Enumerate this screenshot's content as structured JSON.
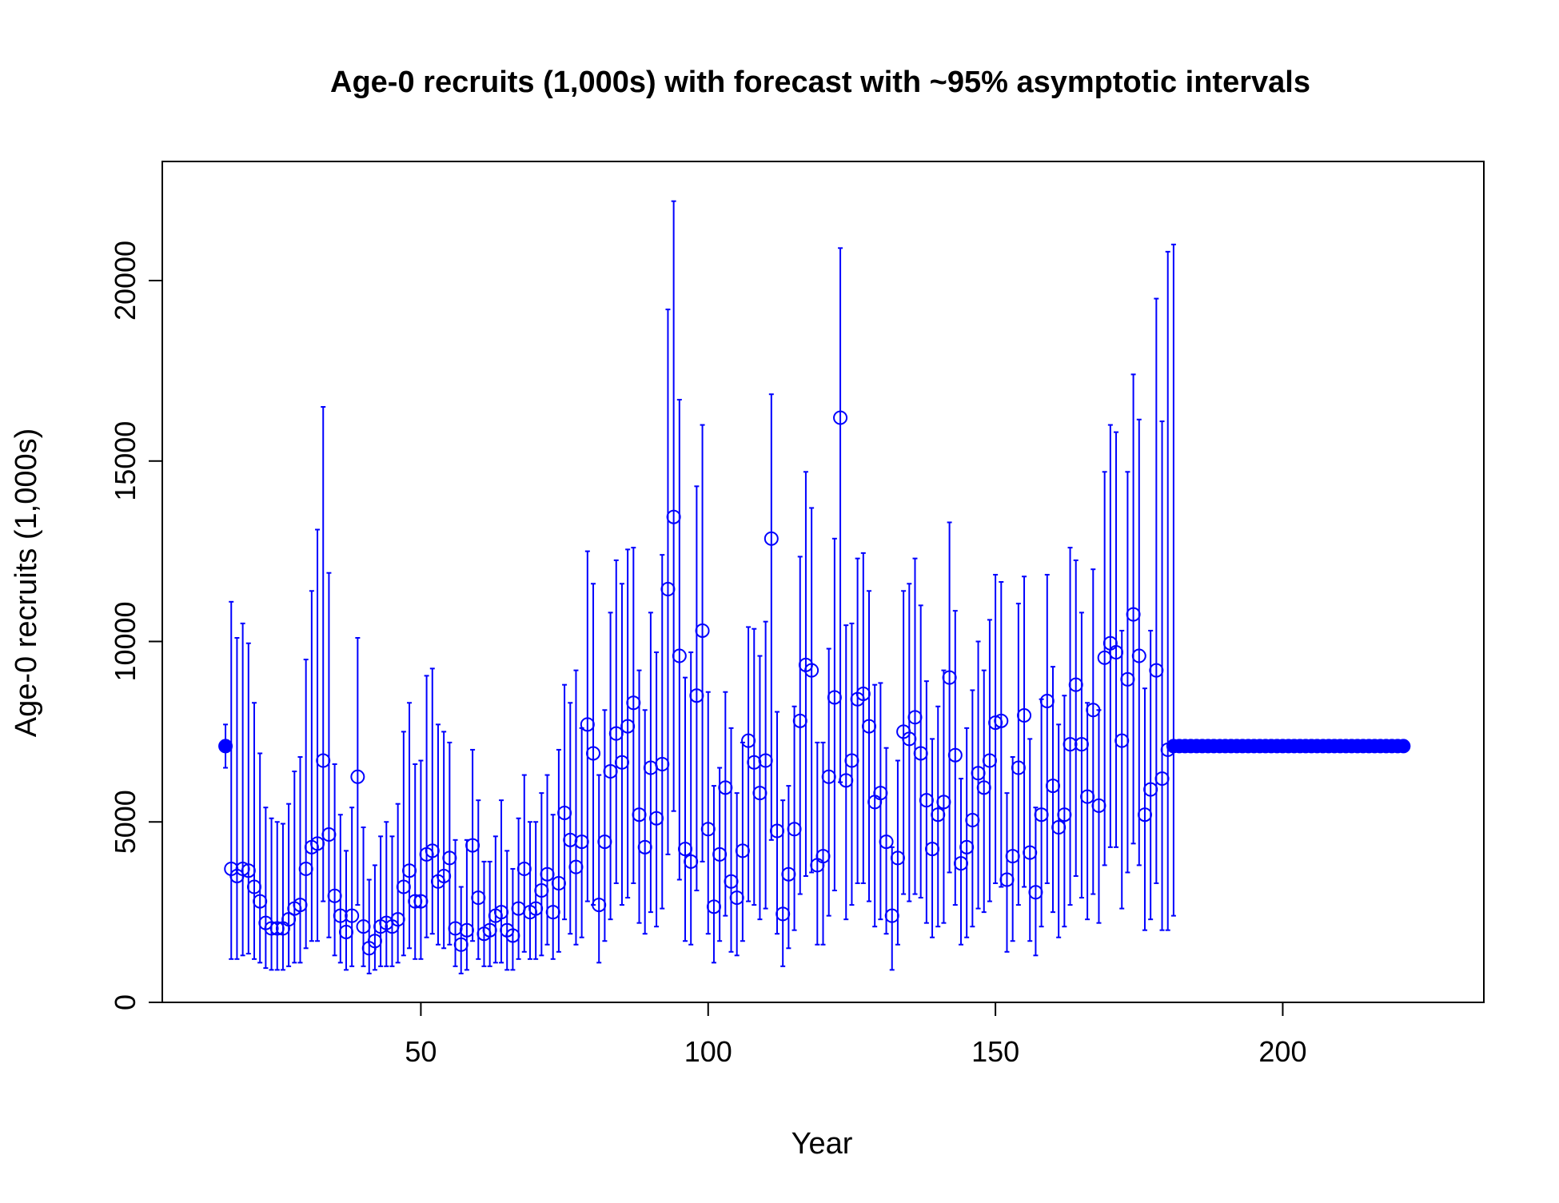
{
  "chart_data": {
    "type": "scatter",
    "title": "Age-0 recruits (1,000s) with forecast with ~95% asymptotic intervals",
    "xlabel": "Year",
    "ylabel": "Age-0 recruits (1,000s)",
    "xlim": [
      5,
      235
    ],
    "ylim": [
      0,
      23300
    ],
    "x_ticks": [
      50,
      100,
      150,
      200
    ],
    "x_tick_labels": [
      "50",
      "100",
      "150",
      "200"
    ],
    "y_ticks": [
      0,
      5000,
      10000,
      15000,
      20000
    ],
    "y_tick_labels": [
      "0",
      "5000",
      "10000",
      "15000",
      "20000"
    ],
    "grid": false,
    "colors": {
      "series": "#0000ff",
      "axes": "#000000"
    },
    "series": [
      {
        "marker": "filled-circle",
        "points": [
          {
            "x": 16,
            "y": 7100,
            "lo": 6500,
            "hi": 7700
          }
        ]
      },
      {
        "marker": "open-circle",
        "x": [
          17,
          18,
          19,
          20,
          21,
          22,
          23,
          24,
          25,
          26,
          27,
          28,
          29,
          30,
          31,
          32,
          33,
          34,
          35,
          36,
          37,
          38,
          39,
          40,
          41,
          42,
          43,
          44,
          45,
          46,
          47,
          48,
          49,
          50,
          51,
          52,
          53,
          54,
          55,
          56,
          57,
          58,
          59,
          60,
          61,
          62,
          63,
          64,
          65,
          66,
          67,
          68,
          69,
          70,
          71,
          72,
          73,
          74,
          75,
          76,
          77,
          78,
          79,
          80,
          81,
          82,
          83,
          84,
          85,
          86,
          87,
          88,
          89,
          90,
          91,
          92,
          93,
          94,
          95,
          96,
          97,
          98,
          99,
          100,
          101,
          102,
          103,
          104,
          105,
          106,
          107,
          108,
          109,
          110,
          111,
          112,
          113,
          114,
          115,
          116,
          117,
          118,
          119,
          120,
          121,
          122,
          123,
          124,
          125,
          126,
          127,
          128,
          129,
          130,
          131,
          132,
          133,
          134,
          135,
          136,
          137,
          138,
          139,
          140,
          141,
          142,
          143,
          144,
          145,
          146,
          147,
          148,
          149,
          150,
          151,
          152,
          153,
          154,
          155,
          156,
          157,
          158,
          159,
          160,
          161,
          162,
          163,
          164,
          165,
          166,
          167,
          168,
          169,
          170,
          171,
          172,
          173,
          174,
          175,
          176,
          177,
          178,
          179,
          180
        ],
        "y": [
          3700,
          3500,
          3700,
          3650,
          3200,
          2800,
          2200,
          2050,
          2050,
          2050,
          2300,
          2600,
          2700,
          3700,
          4300,
          4400,
          6700,
          4650,
          2950,
          2400,
          1950,
          2400,
          6250,
          2100,
          1500,
          1700,
          2100,
          2200,
          2100,
          2300,
          3200,
          3650,
          2800,
          2800,
          4100,
          4200,
          3350,
          3500,
          4000,
          2050,
          1600,
          2000,
          4350,
          2900,
          1900,
          2000,
          2400,
          2500,
          2000,
          1850,
          2600,
          3700,
          2500,
          2600,
          3100,
          3550,
          2500,
          3300,
          5250,
          4500,
          3750,
          4450,
          7700,
          6900,
          2700,
          4450,
          6400,
          7450,
          6650,
          7650,
          8300,
          5200,
          4300,
          6500,
          5100,
          6600,
          11450,
          13450,
          9600,
          4250,
          3900,
          8500,
          10300,
          4800,
          2650,
          4100,
          5950,
          3350,
          2900,
          4200,
          7250,
          6650,
          5800,
          6700,
          12850,
          4750,
          2450,
          3550,
          4800,
          7800,
          9350,
          9200,
          3800,
          4050,
          6250,
          8450,
          16200,
          6150,
          6700,
          8400,
          8550,
          7650,
          5550,
          5800,
          4450,
          2400,
          4000,
          7500,
          7300,
          7900,
          6900,
          5600,
          4250,
          5200,
          5550,
          9000,
          6850,
          3850,
          4300,
          5050,
          6350,
          5950,
          6700,
          7750,
          7800,
          3400,
          4050,
          6500,
          7950,
          4150,
          3050,
          5200,
          8350,
          6000,
          4850,
          5200,
          7150,
          8800,
          7150,
          5700,
          8100,
          5450,
          9550,
          9950,
          9700,
          7250,
          8950,
          10750,
          9600,
          5200,
          5900,
          9200,
          6200,
          7000
        ],
        "lo": [
          1200,
          1200,
          1300,
          1350,
          1200,
          1100,
          950,
          900,
          900,
          900,
          1000,
          1100,
          1100,
          1500,
          1700,
          1700,
          2800,
          1800,
          1300,
          1100,
          900,
          1000,
          2700,
          1000,
          800,
          900,
          1000,
          1000,
          1000,
          1100,
          1300,
          1500,
          1200,
          1200,
          1800,
          1900,
          1600,
          1500,
          1600,
          1000,
          800,
          900,
          1700,
          1200,
          1000,
          1000,
          1100,
          1100,
          900,
          900,
          1200,
          1400,
          1200,
          1200,
          1300,
          1600,
          1200,
          1400,
          2300,
          1900,
          1600,
          1800,
          2800,
          2700,
          1100,
          1700,
          2300,
          3300,
          2700,
          2900,
          3300,
          2200,
          1900,
          2500,
          2100,
          2600,
          4100,
          5300,
          3400,
          1700,
          1600,
          3100,
          3900,
          1900,
          1100,
          1700,
          2400,
          1400,
          1300,
          1700,
          2800,
          2700,
          2300,
          2600,
          4500,
          1900,
          1000,
          1500,
          2000,
          3000,
          3500,
          3600,
          1600,
          1600,
          2400,
          3100,
          6100,
          2300,
          2700,
          3300,
          3300,
          2800,
          2100,
          2300,
          1900,
          900,
          1600,
          3000,
          2800,
          3000,
          2900,
          2200,
          1800,
          2100,
          2200,
          3600,
          2700,
          1600,
          1800,
          2100,
          2600,
          2500,
          2800,
          3300,
          3200,
          1400,
          1700,
          2700,
          3200,
          1700,
          1300,
          2100,
          3300,
          2500,
          1800,
          2100,
          2700,
          3500,
          2900,
          2300,
          3000,
          2200,
          3800,
          4300,
          4300,
          2600,
          3600,
          4400,
          3800,
          2000,
          2300,
          3300,
          2000,
          2000
        ],
        "hi": [
          11100,
          10100,
          10500,
          9950,
          8300,
          6900,
          5400,
          5100,
          5000,
          4950,
          5500,
          6400,
          6800,
          9500,
          11400,
          13100,
          16500,
          11900,
          6600,
          5200,
          4200,
          5400,
          10100,
          4850,
          3400,
          3800,
          4600,
          5000,
          4600,
          5500,
          7500,
          8300,
          6600,
          6700,
          9050,
          9250,
          7700,
          7500,
          7200,
          4500,
          3200,
          4500,
          7000,
          5600,
          3900,
          3900,
          4600,
          5600,
          4200,
          3700,
          5100,
          6300,
          5000,
          5000,
          5800,
          6300,
          5200,
          7000,
          8800,
          8300,
          9200,
          7600,
          12500,
          11600,
          6300,
          8100,
          10800,
          12250,
          11600,
          12550,
          12600,
          9200,
          8100,
          10800,
          9700,
          12400,
          19200,
          22200,
          16700,
          9000,
          9700,
          14300,
          16000,
          8600,
          6000,
          6500,
          8600,
          7600,
          5800,
          7200,
          10400,
          10350,
          9600,
          10550,
          16850,
          8050,
          5600,
          6000,
          8200,
          12350,
          14700,
          13700,
          7200,
          7200,
          9800,
          12850,
          20900,
          10450,
          10500,
          12300,
          12450,
          11400,
          8800,
          8850,
          7050,
          4300,
          6700,
          11400,
          11600,
          12300,
          11000,
          8900,
          7300,
          8200,
          9200,
          13300,
          10850,
          6200,
          7600,
          8650,
          10000,
          9200,
          10600,
          11850,
          11650,
          5800,
          6800,
          11050,
          11800,
          7300,
          5400,
          8400,
          11850,
          9300,
          7700,
          8500,
          12600,
          12250,
          10800,
          8300,
          12000,
          8100,
          14700,
          16000,
          15800,
          10300,
          14700,
          17400,
          16150,
          8700,
          10300,
          19500,
          16100,
          20800
        ]
      },
      {
        "marker": "filled-circle",
        "x_start": 181,
        "x_end": 221,
        "y": 7100,
        "lo": 2400,
        "hi": 21000
      }
    ]
  }
}
